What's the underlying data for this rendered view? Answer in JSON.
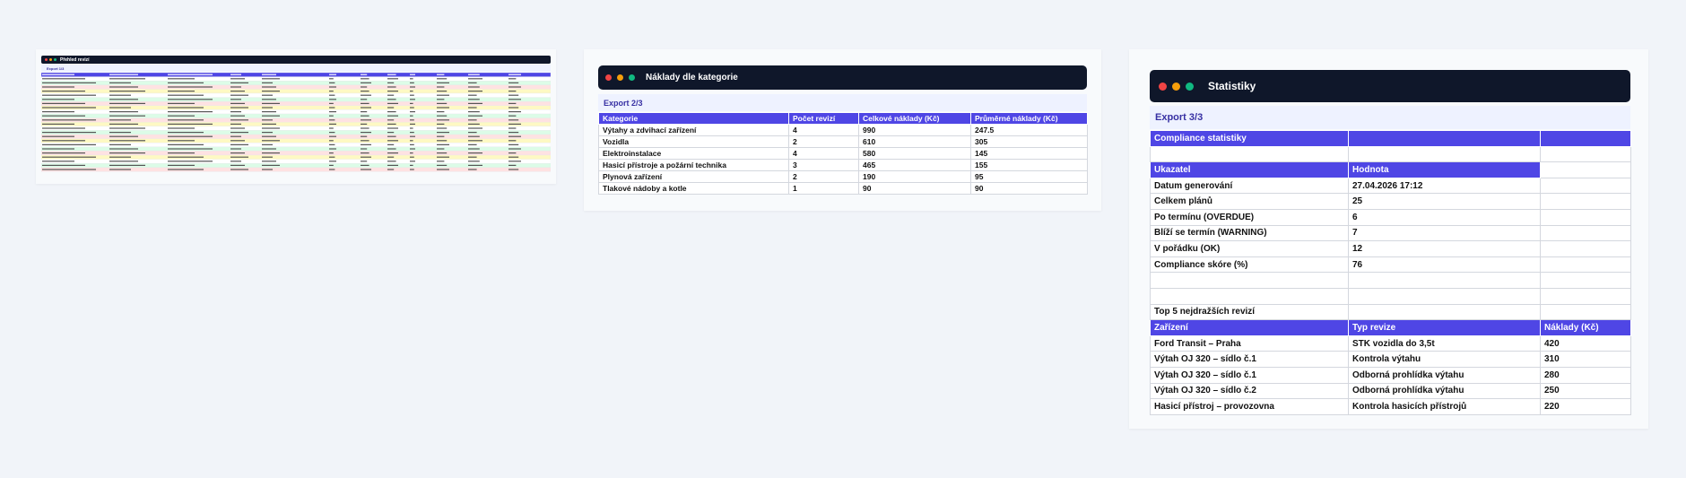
{
  "panels": [
    {
      "title": "Přehled revizí",
      "export": "Export 1/3"
    },
    {
      "title": "Náklady dle kategorie",
      "export": "Export 2/3",
      "table": {
        "header": [
          "Kategorie",
          "Počet revizí",
          "Celkové náklady (Kč)",
          "Průměrné náklady (Kč)"
        ],
        "rows": [
          [
            "Výtahy a zdvihací zařízení",
            4,
            990,
            247.5
          ],
          [
            "Vozidla",
            2,
            610,
            305
          ],
          [
            "Elektroinstalace",
            4,
            580,
            145
          ],
          [
            "Hasicí přístroje a požární technika",
            3,
            465,
            155
          ],
          [
            "Plynová zařízení",
            2,
            190,
            95
          ],
          [
            "Tlakové nádoby a kotle",
            1,
            90,
            90
          ]
        ]
      }
    },
    {
      "title": "Statistiky",
      "export": "Export 3/3",
      "stats_title": "Compliance statistiky",
      "stats_header": [
        "Ukazatel",
        "Hodnota"
      ],
      "stats_rows": [
        [
          "Datum generování",
          "27.04.2026 17:12"
        ],
        [
          "Celkem plánů",
          25
        ],
        [
          "Po termínu (OVERDUE)",
          6
        ],
        [
          "Blíží se termín (WARNING)",
          7
        ],
        [
          "V pořádku (OK)",
          12
        ],
        [
          "Compliance skóre (%)",
          76
        ]
      ],
      "top_title": "Top 5 nejdražších revizí",
      "top_header": [
        "Zařízení",
        "Typ revize",
        "Náklady (Kč)"
      ],
      "top_rows": [
        [
          "Ford Transit – Praha",
          "STK vozidla do 3,5t",
          420
        ],
        [
          "Výtah OJ 320 – sídlo č.1",
          "Kontrola výtahu",
          310
        ],
        [
          "Výtah OJ 320 – sídlo č.1",
          "Odborná prohlídka výtahu",
          280
        ],
        [
          "Výtah OJ 320 – sídlo č.2",
          "Odborná prohlídka výtahu",
          250
        ],
        [
          "Hasicí přístroj – provozovna",
          "Kontrola hasicích přístrojů",
          220
        ]
      ]
    }
  ]
}
